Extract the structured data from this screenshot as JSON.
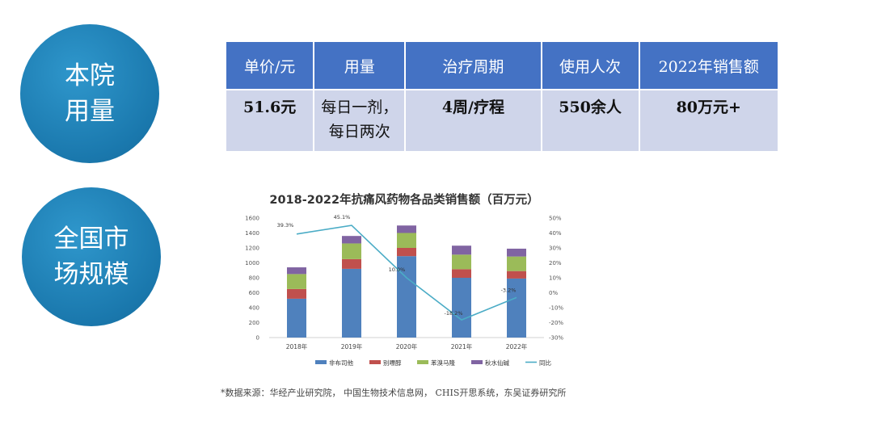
{
  "sections": {
    "hospital": [
      "本院",
      "用量"
    ],
    "market": [
      "全国市",
      "场规模"
    ]
  },
  "table": {
    "headers": [
      "单价/元",
      "用量",
      "治疗周期",
      "使用人次",
      "2022年销售额"
    ],
    "row": [
      "51.6元",
      "每日一剂，\n每日两次",
      "4周/疗程",
      "550余人",
      "80万元+"
    ]
  },
  "chart_data": {
    "type": "bar",
    "stacked": true,
    "title": "2018-2022年抗痛风药物各品类销售额（百万元）",
    "categories": [
      "2018年",
      "2019年",
      "2020年",
      "2021年",
      "2022年"
    ],
    "series": [
      {
        "name": "非布司他",
        "color": "#4f81bd",
        "values": [
          520,
          920,
          1090,
          800,
          790
        ]
      },
      {
        "name": "别嘌醇",
        "color": "#c0504d",
        "values": [
          130,
          130,
          110,
          115,
          100
        ]
      },
      {
        "name": "苯溴马隆",
        "color": "#9bbb59",
        "values": [
          200,
          210,
          200,
          195,
          195
        ]
      },
      {
        "name": "秋水仙碱",
        "color": "#8064a2",
        "values": [
          90,
          100,
          100,
          120,
          105
        ]
      }
    ],
    "line": {
      "name": "同比",
      "color": "#4bacc6",
      "values": [
        39.3,
        45.1,
        10.0,
        -18.2,
        -3.2
      ],
      "labels": [
        "39.3%",
        "45.1%",
        "10.0%",
        "-18.2%",
        "-3.2%"
      ]
    },
    "y_left": {
      "min": 0,
      "max": 1600,
      "step": 200,
      "ticks": [
        "0",
        "200",
        "400",
        "600",
        "800",
        "1000",
        "1200",
        "1400",
        "1600"
      ]
    },
    "y_right": {
      "min": -30,
      "max": 50,
      "step": 10,
      "ticks": [
        "-30%",
        "-20%",
        "-10%",
        "0%",
        "10%",
        "20%",
        "30%",
        "40%",
        "50%"
      ]
    },
    "legend_position": "bottom",
    "grid": false
  },
  "source": "*数据来源：华经产业研究院， 中国生物技术信息网， CHIS开思系统，东吴证券研究所"
}
